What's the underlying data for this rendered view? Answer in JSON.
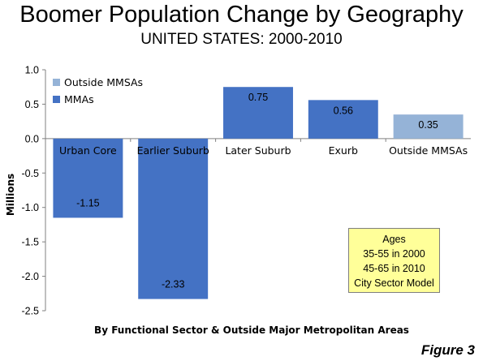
{
  "header": {
    "title": "Boomer Population Change by Geography",
    "subtitle": "UNITED STATES: 2000-2010"
  },
  "chart_data": {
    "type": "bar",
    "categories": [
      "Urban Core",
      "Earlier Suburb",
      "Later Suburb",
      "Exurb",
      "Outside MMSAs"
    ],
    "series": [
      {
        "name": "MMAs",
        "values": [
          -1.15,
          -2.33,
          0.75,
          0.56,
          null
        ],
        "color": "#4472c4"
      },
      {
        "name": "Outside MMSAs",
        "values": [
          null,
          null,
          null,
          null,
          0.35
        ],
        "color": "#95b3d7"
      }
    ],
    "data_labels": [
      "-1.15",
      "-2.33",
      "0.75",
      "0.56",
      "0.35"
    ],
    "ylabel": "Millions",
    "xlabel": "By Functional Sector & Outside Major Metropolitan Areas",
    "ylim": [
      -2.5,
      1.0
    ],
    "yticks": [
      1.0,
      0.5,
      0.0,
      -0.5,
      -1.0,
      -1.5,
      -2.0,
      -2.5
    ],
    "ytick_labels": [
      "1.0",
      "0.5",
      "0.0",
      "-0.5",
      "-1.0",
      "-1.5",
      "-2.0",
      "-2.5"
    ],
    "legend": {
      "placement": "top-left",
      "entries": [
        "Outside MMSAs",
        "MMAs"
      ]
    },
    "grid": false
  },
  "annotation": {
    "lines": [
      "Ages",
      "35-55 in 2000",
      "45-65 in 2010",
      "City Sector Model"
    ],
    "color": "#ffff99"
  },
  "footer": {
    "figure_label": "Figure 3"
  }
}
